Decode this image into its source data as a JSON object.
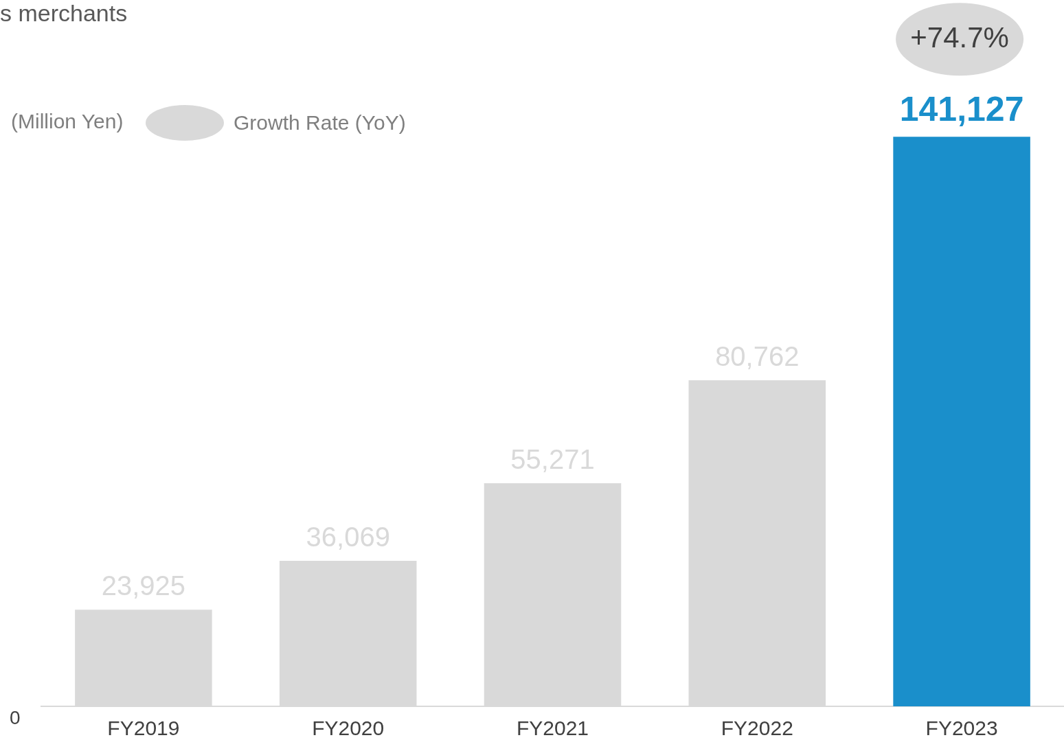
{
  "chart_data": {
    "type": "bar",
    "title": "s merchants",
    "ylabel": "(Million Yen)",
    "categories": [
      "FY2019",
      "FY2020",
      "FY2021",
      "FY2022",
      "FY2023"
    ],
    "values": [
      23925,
      36069,
      55271,
      80762,
      141127
    ],
    "value_labels": [
      "23,925",
      "36,069",
      "55,271",
      "80,762",
      "141,127"
    ],
    "colors": [
      "#d9d9d9",
      "#d9d9d9",
      "#d9d9d9",
      "#d9d9d9",
      "#1a8fcb"
    ],
    "grid": false,
    "annotations": [
      "Growth Rate (YoY)",
      "+74.7%",
      "0"
    ]
  }
}
